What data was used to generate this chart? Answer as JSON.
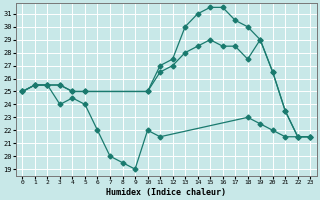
{
  "xlabel": "Humidex (Indice chaleur)",
  "bg_color": "#c8e8e8",
  "grid_color": "#ffffff",
  "line_color": "#1a7a6e",
  "xlim": [
    -0.5,
    23.5
  ],
  "ylim": [
    18.5,
    31.8
  ],
  "xticks": [
    0,
    1,
    2,
    3,
    4,
    5,
    6,
    7,
    8,
    9,
    10,
    11,
    12,
    13,
    14,
    15,
    16,
    17,
    18,
    19,
    20,
    21,
    22,
    23
  ],
  "yticks": [
    19,
    20,
    21,
    22,
    23,
    24,
    25,
    26,
    27,
    28,
    29,
    30,
    31
  ],
  "line1_x": [
    0,
    1,
    2,
    3,
    4,
    5,
    10,
    11,
    12,
    13,
    14,
    15,
    16,
    17,
    18,
    19,
    20,
    21,
    22,
    23
  ],
  "line1_y": [
    25,
    25.5,
    25.5,
    25.5,
    25,
    25,
    25,
    27,
    27.5,
    30,
    31,
    31.5,
    31.5,
    30.5,
    30,
    29,
    26.5,
    23.5,
    21.5,
    21.5
  ],
  "line2_x": [
    0,
    1,
    2,
    3,
    4,
    5,
    10,
    11,
    12,
    13,
    14,
    15,
    16,
    17,
    18,
    19,
    20,
    21,
    22,
    23
  ],
  "line2_y": [
    25,
    25.5,
    25.5,
    25.5,
    25,
    25,
    25,
    26.5,
    27,
    28,
    28.5,
    29,
    28.5,
    28.5,
    27.5,
    29,
    26.5,
    23.5,
    21.5,
    21.5
  ],
  "line3_x": [
    0,
    1,
    2,
    3,
    4,
    5,
    6,
    7,
    8,
    9,
    10,
    11,
    18,
    19,
    20,
    21,
    22,
    23
  ],
  "line3_y": [
    25,
    25.5,
    25.5,
    24,
    24.5,
    24,
    22,
    20,
    19.5,
    19,
    22,
    21.5,
    23,
    22.5,
    22,
    21.5,
    21.5,
    21.5
  ]
}
